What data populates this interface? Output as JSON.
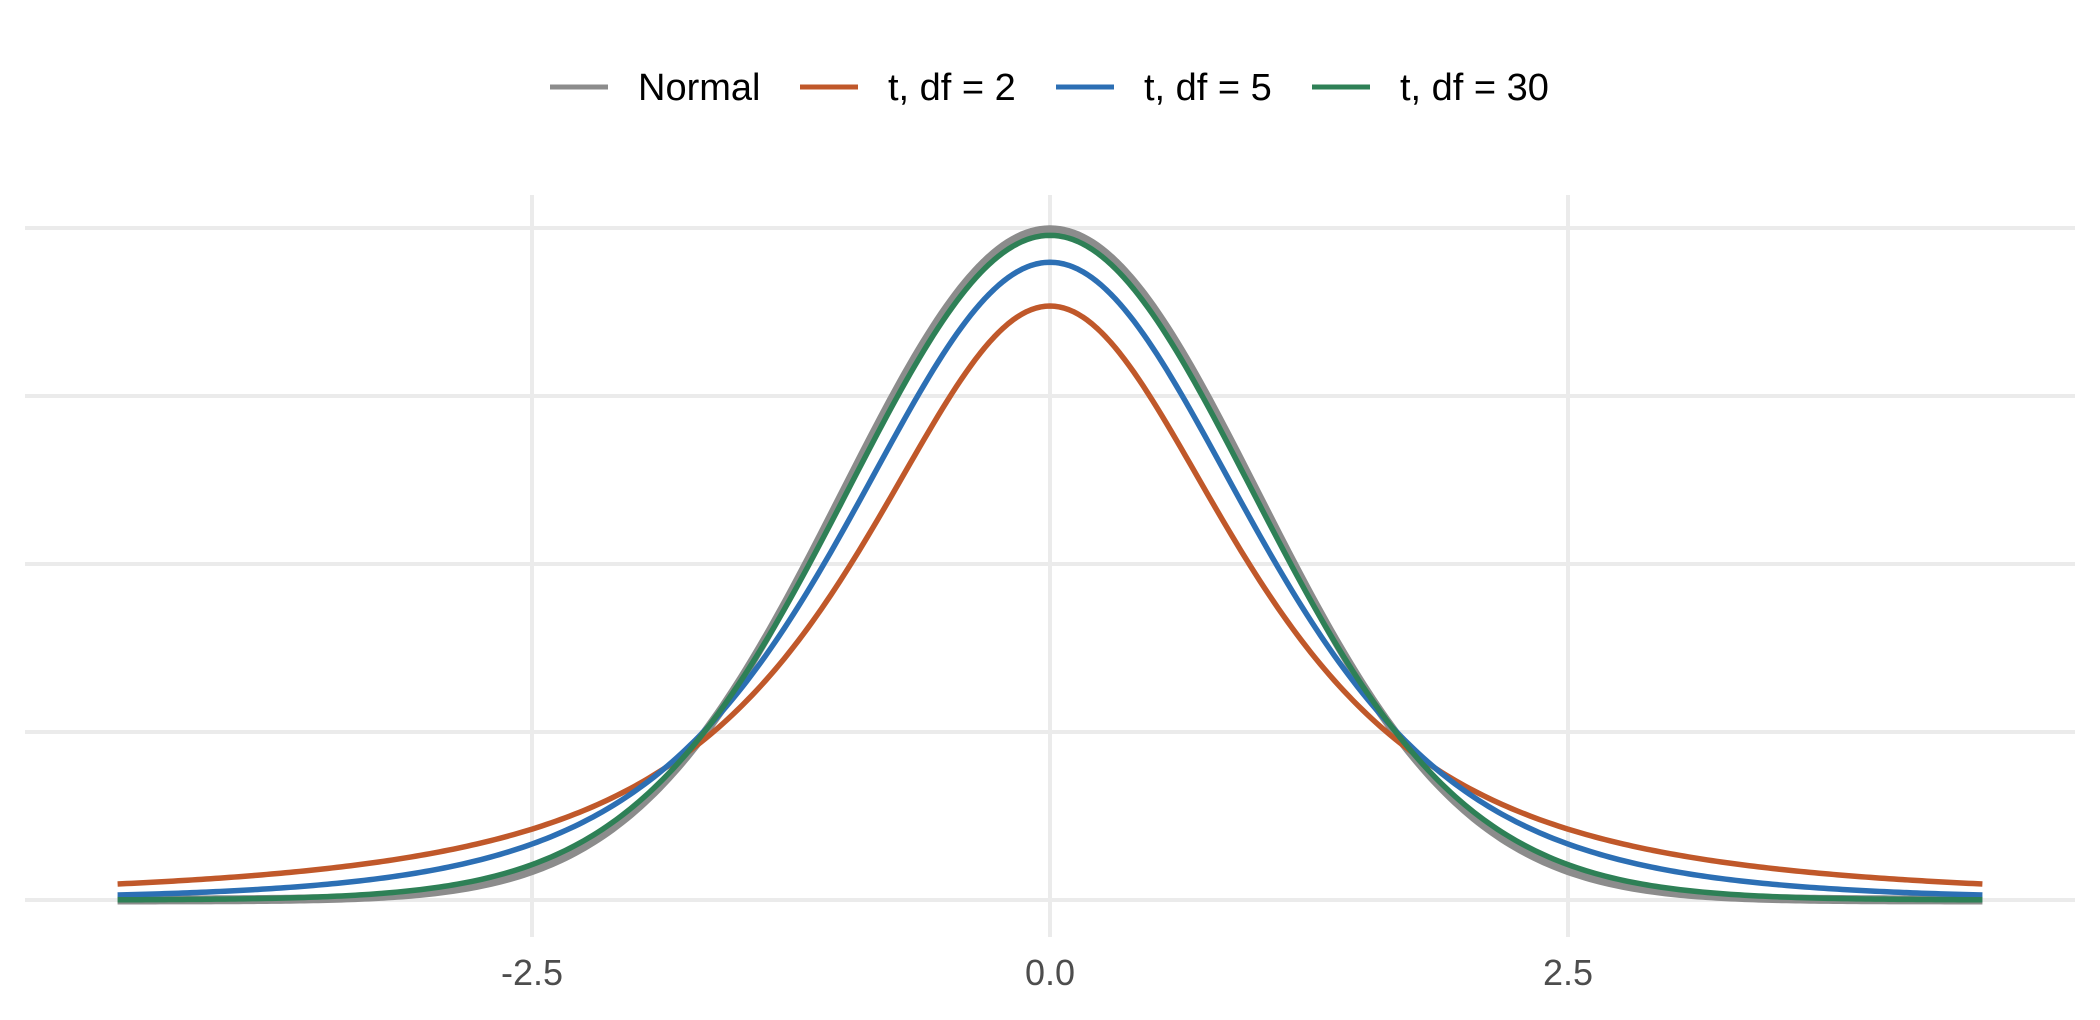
{
  "colors": {
    "background": "#ffffff",
    "grid": "#ebebeb",
    "tick_text": "#4d4d4d",
    "legend_text": "#000000"
  },
  "chart_data": {
    "type": "line",
    "title": "",
    "xlabel": "",
    "ylabel": "",
    "xlim": [
      -4.5,
      4.5
    ],
    "ylim": [
      0,
      0.4
    ],
    "x_ticks": [
      -2.5,
      0.0,
      2.5
    ],
    "x_tick_labels": [
      "-2.5",
      "0.0",
      "2.5"
    ],
    "y_gridlines": [
      0,
      0.1,
      0.2,
      0.3,
      0.4
    ],
    "y_tick_labels_shown": false,
    "grid": true,
    "legend_position": "top",
    "series": [
      {
        "name": "Normal",
        "distribution": "normal",
        "color": "#8c8c8c",
        "x": [
          -4.5,
          -4,
          -3.5,
          -3,
          -2.5,
          -2,
          -1.5,
          -1,
          -0.5,
          0,
          0.5,
          1,
          1.5,
          2,
          2.5,
          3,
          3.5,
          4,
          4.5
        ],
        "values": [
          1.6e-05,
          0.000134,
          0.000873,
          0.004432,
          0.017528,
          0.053991,
          0.129518,
          0.241971,
          0.352065,
          0.398942,
          0.352065,
          0.241971,
          0.129518,
          0.053991,
          0.017528,
          0.004432,
          0.000873,
          0.000134,
          1.6e-05
        ]
      },
      {
        "name": "t, df = 2",
        "distribution": "t",
        "df": 2,
        "color": "#c0582a",
        "x": [
          -4.5,
          -4,
          -3.5,
          -3,
          -2.5,
          -2,
          -1.5,
          -1,
          -0.5,
          0,
          0.5,
          1,
          1.5,
          2,
          2.5,
          3,
          3.5,
          4,
          4.5
        ],
        "values": [
          0.009277,
          0.013095,
          0.019244,
          0.02741,
          0.042181,
          0.068041,
          0.114298,
          0.19245,
          0.294628,
          0.353553,
          0.294628,
          0.19245,
          0.114298,
          0.068041,
          0.042181,
          0.02741,
          0.019244,
          0.013095,
          0.009277
        ]
      },
      {
        "name": "t, df = 5",
        "distribution": "t",
        "df": 5,
        "color": "#2c6fb4",
        "x": [
          -4.5,
          -4,
          -3.5,
          -3,
          -2.5,
          -2,
          -1.5,
          -1,
          -0.5,
          0,
          0.5,
          1,
          1.5,
          2,
          2.5,
          3,
          3.5,
          4,
          4.5
        ],
        "values": [
          0.003264,
          0.005124,
          0.008518,
          0.017292,
          0.032353,
          0.06509,
          0.123925,
          0.21968,
          0.335594,
          0.379607,
          0.335594,
          0.21968,
          0.123925,
          0.06509,
          0.032353,
          0.017292,
          0.008518,
          0.005124,
          0.003264
        ]
      },
      {
        "name": "t, df = 30",
        "distribution": "t",
        "df": 30,
        "color": "#2e8056",
        "x": [
          -4.5,
          -4,
          -3.5,
          -3,
          -2.5,
          -2,
          -1.5,
          -1,
          -0.5,
          0,
          0.5,
          1,
          1.5,
          2,
          2.5,
          3,
          3.5,
          4,
          4.5
        ],
        "values": [
          0.000137,
          0.000509,
          0.001839,
          0.006093,
          0.020603,
          0.056514,
          0.12898,
          0.2388,
          0.3499,
          0.396953,
          0.3499,
          0.2388,
          0.12898,
          0.056514,
          0.020603,
          0.006093,
          0.001839,
          0.000509,
          0.000137
        ]
      }
    ]
  }
}
